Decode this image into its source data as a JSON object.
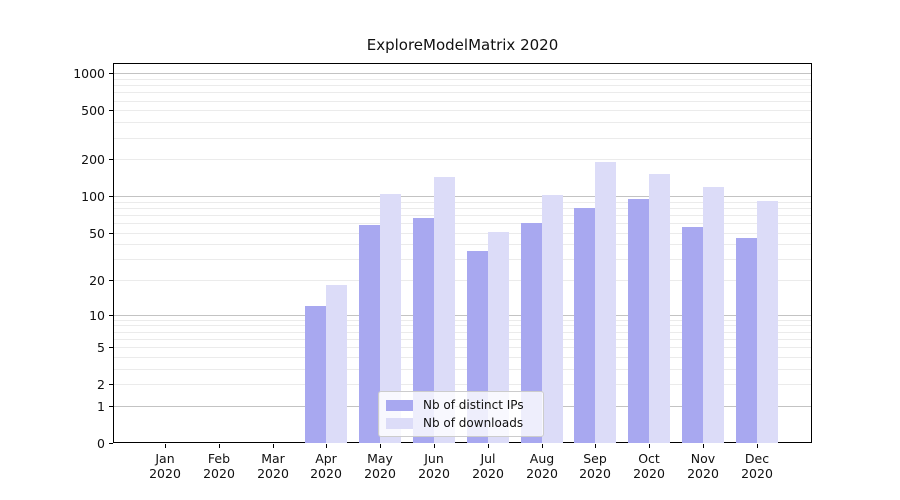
{
  "chart_data": {
    "type": "bar",
    "title": "ExploreModelMatrix 2020",
    "categories": [
      "Jan",
      "Feb",
      "Mar",
      "Apr",
      "May",
      "Jun",
      "Jul",
      "Aug",
      "Sep",
      "Oct",
      "Nov",
      "Dec"
    ],
    "year_label": "2020",
    "series": [
      {
        "name": "Nb of distinct IPs",
        "color": "#a8a8f0",
        "values": [
          0,
          0,
          0,
          12,
          58,
          66,
          35,
          60,
          80,
          94,
          56,
          45
        ]
      },
      {
        "name": "Nb of downloads",
        "color": "#dcdcf8",
        "values": [
          0,
          0,
          0,
          18,
          105,
          143,
          51,
          102,
          190,
          152,
          119,
          92
        ]
      }
    ],
    "yscale": "log1p",
    "yticks": [
      1000,
      500,
      200,
      100,
      50,
      20,
      10,
      5,
      2,
      1,
      0
    ],
    "major_grid_values": [
      1,
      10,
      100,
      1000
    ],
    "ylim": [
      0,
      1215
    ],
    "xlabel": "",
    "ylabel": "",
    "grid": true,
    "legend_position": "lower center",
    "colors": {
      "major_grid": "#c3c3c3",
      "minor_grid": "#ebebeb",
      "spine": "#000000",
      "text": "#111111"
    }
  }
}
